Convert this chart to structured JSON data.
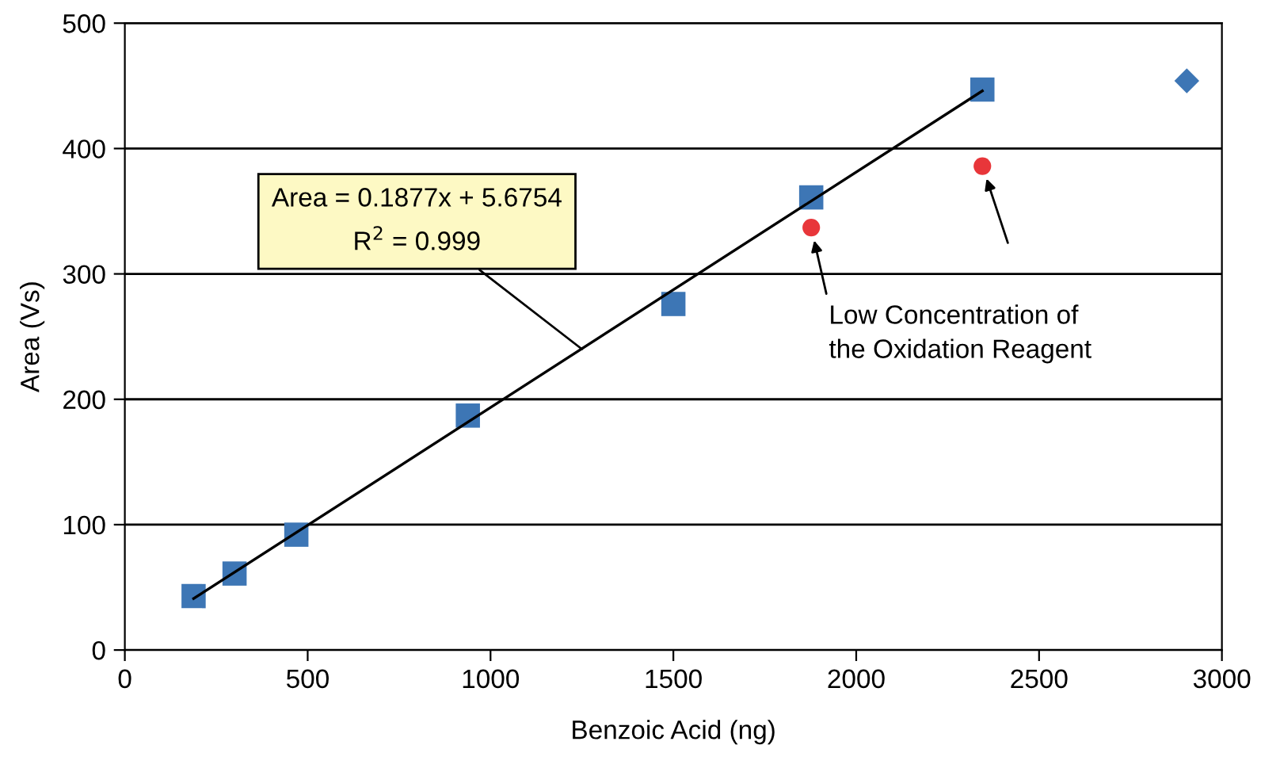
{
  "chart_data": {
    "type": "scatter",
    "xlabel": "Benzoic Acid (ng)",
    "ylabel": "Area (Vs)",
    "xlim": [
      0,
      3000
    ],
    "xticks": [
      0,
      500,
      1000,
      1500,
      2000,
      2500,
      3000
    ],
    "ylim": [
      0,
      500
    ],
    "yticks": [
      0,
      100,
      200,
      300,
      400,
      500
    ],
    "grid": "y",
    "legend": false,
    "series": [
      {
        "type": "scatter",
        "marker": "square",
        "color": "#3d76b5",
        "x": [
          188,
          300,
          469,
          938,
          1500,
          1877,
          2345
        ],
        "values": [
          43,
          61,
          92,
          187,
          276,
          361,
          447
        ]
      },
      {
        "marker": "circle",
        "color": "#e8363a",
        "x": [
          1877,
          2345
        ],
        "values": [
          337,
          386
        ]
      },
      {
        "type": "scatter",
        "marker": "diamond",
        "color": "#3d76b5",
        "x": [
          2904
        ],
        "values": [
          454
        ]
      },
      {
        "type": "line",
        "marker": "none",
        "line_style": "solid",
        "color": "#000000",
        "x": [
          188,
          2345
        ],
        "values": [
          41,
          446
        ]
      }
    ],
    "annotations": [
      {
        "text": "Area = 0.1877x + 5.6754\nR$^{2}$ = 0.999",
        "x": 1250,
        "y": 240
      },
      {
        "text": "Low Concentration of\nthe Oxidation Reagent",
        "x": 1877,
        "y": 337
      }
    ]
  }
}
